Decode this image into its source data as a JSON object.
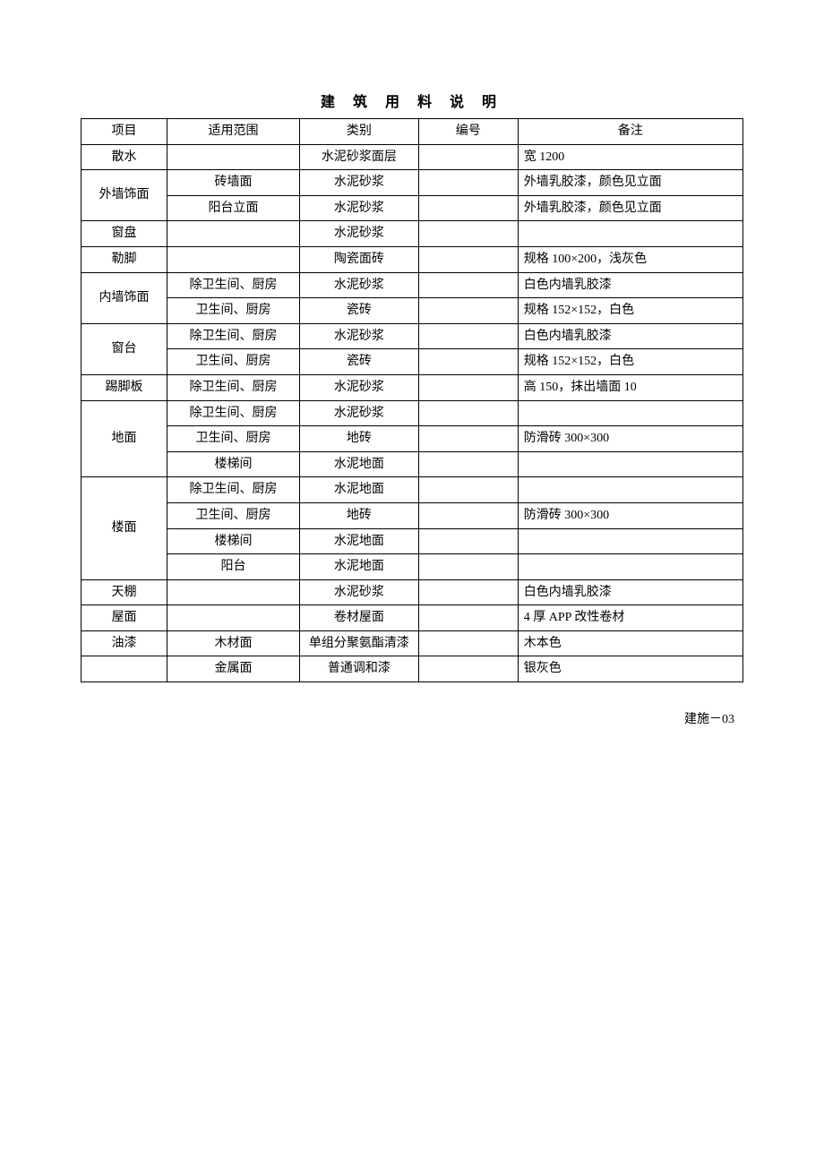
{
  "title": "建 筑 用 料 说 明",
  "headers": {
    "c1": "项目",
    "c2": "适用范围",
    "c3": "类别",
    "c4": "编号",
    "c5": "备注"
  },
  "rows": [
    {
      "c1": "散水",
      "c1rows": 1,
      "c2": "",
      "c3": "水泥砂浆面层",
      "c4": "",
      "c5": "宽 1200"
    },
    {
      "c1": "外墙饰面",
      "c1rows": 2,
      "c2": "砖墙面",
      "c3": "水泥砂浆",
      "c4": "",
      "c5": "外墙乳胶漆，颜色见立面"
    },
    {
      "c2": "阳台立面",
      "c3": "水泥砂浆",
      "c4": "",
      "c5": "外墙乳胶漆，颜色见立面"
    },
    {
      "c1": "窗盘",
      "c1rows": 1,
      "c2": "",
      "c3": "水泥砂浆",
      "c4": "",
      "c5": ""
    },
    {
      "c1": "勒脚",
      "c1rows": 1,
      "c2": "",
      "c3": "陶瓷面砖",
      "c4": "",
      "c5": "规格 100×200，浅灰色"
    },
    {
      "c1": "内墙饰面",
      "c1rows": 2,
      "c2": "除卫生间、厨房",
      "c3": "水泥砂浆",
      "c4": "",
      "c5": "白色内墙乳胶漆"
    },
    {
      "c2": "卫生间、厨房",
      "c3": "瓷砖",
      "c4": "",
      "c5": "规格 152×152，白色"
    },
    {
      "c1": "窗台",
      "c1rows": 2,
      "c2": "除卫生间、厨房",
      "c3": "水泥砂浆",
      "c4": "",
      "c5": "白色内墙乳胶漆"
    },
    {
      "c2": "卫生间、厨房",
      "c3": "瓷砖",
      "c4": "",
      "c5": "规格 152×152，白色"
    },
    {
      "c1": "踢脚板",
      "c1rows": 1,
      "c2": "除卫生间、厨房",
      "c3": "水泥砂浆",
      "c4": "",
      "c5": "高 150，抹出墙面 10"
    },
    {
      "c1": "地面",
      "c1rows": 3,
      "c2": "除卫生间、厨房",
      "c3": "水泥砂浆",
      "c4": "",
      "c5": ""
    },
    {
      "c2": "卫生间、厨房",
      "c3": "地砖",
      "c4": "",
      "c5": "防滑砖 300×300"
    },
    {
      "c2": "楼梯间",
      "c3": "水泥地面",
      "c4": "",
      "c5": ""
    },
    {
      "c1": "楼面",
      "c1rows": 4,
      "c2": "除卫生间、厨房",
      "c3": "水泥地面",
      "c4": "",
      "c5": ""
    },
    {
      "c2": "卫生间、厨房",
      "c3": "地砖",
      "c4": "",
      "c5": "防滑砖 300×300"
    },
    {
      "c2": "楼梯间",
      "c3": "水泥地面",
      "c4": "",
      "c5": ""
    },
    {
      "c2": "阳台",
      "c3": "水泥地面",
      "c4": "",
      "c5": ""
    },
    {
      "c1": "天棚",
      "c1rows": 1,
      "c2": "",
      "c3": "水泥砂浆",
      "c4": "",
      "c5": "白色内墙乳胶漆"
    },
    {
      "c1": "屋面",
      "c1rows": 1,
      "c2": "",
      "c3": "卷材屋面",
      "c4": "",
      "c5": "4 厚 APP 改性卷材"
    },
    {
      "c1": "油漆",
      "c1rows": 1,
      "c2": "木材面",
      "c3": "单组分聚氨酯清漆",
      "c4": "",
      "c5": "木本色"
    },
    {
      "c1": "",
      "c1rows": 1,
      "c2": "金属面",
      "c3": "普通调和漆",
      "c4": "",
      "c5": "银灰色"
    }
  ],
  "footer": "建施－03"
}
